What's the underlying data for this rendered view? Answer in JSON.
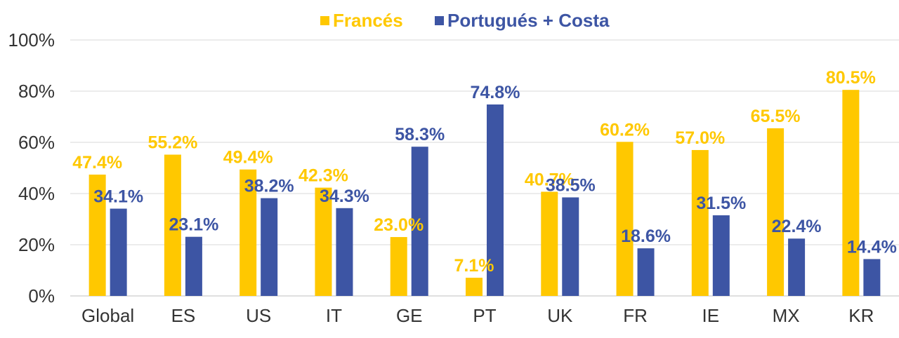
{
  "chart_data": {
    "type": "bar",
    "categories": [
      "Global",
      "ES",
      "US",
      "IT",
      "GE",
      "PT",
      "UK",
      "FR",
      "IE",
      "MX",
      "KR"
    ],
    "series": [
      {
        "name": "Francés",
        "color": "#FFC800",
        "values": [
          47.4,
          55.2,
          49.4,
          42.3,
          23.0,
          7.1,
          40.7,
          60.2,
          57.0,
          65.5,
          80.5
        ],
        "labels": [
          "47.4%",
          "55.2%",
          "49.4%",
          "42.3%",
          "23.0%",
          "7.1%",
          "40.7%",
          "60.2%",
          "57.0%",
          "65.5%",
          "80.5%"
        ]
      },
      {
        "name": "Portugués + Costa",
        "color": "#3D55A4",
        "values": [
          34.1,
          23.1,
          38.2,
          34.3,
          58.3,
          74.8,
          38.5,
          18.6,
          31.5,
          22.4,
          14.4
        ],
        "labels": [
          "34.1%",
          "23.1%",
          "38.2%",
          "34.3%",
          "58.3%",
          "74.8%",
          "38.5%",
          "18.6%",
          "31.5%",
          "22.4%",
          "14.4%"
        ]
      }
    ],
    "yticks": [
      "0%",
      "20%",
      "40%",
      "60%",
      "80%",
      "100%"
    ],
    "ylim": [
      0,
      100
    ],
    "grid": true,
    "legend_position": "top"
  }
}
